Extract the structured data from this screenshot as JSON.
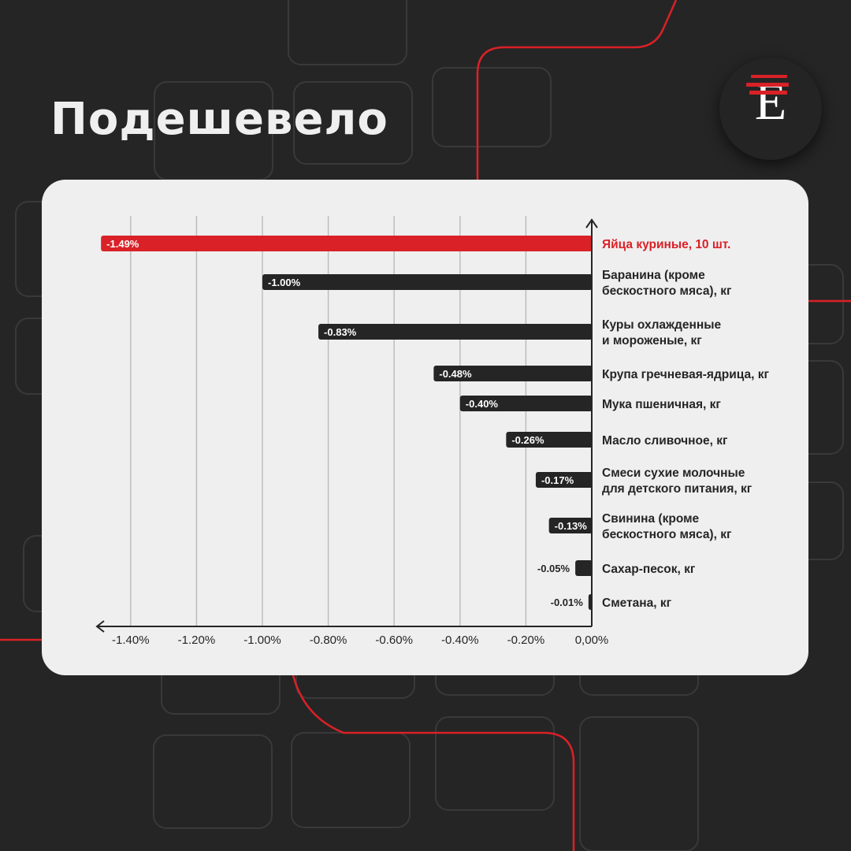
{
  "header": {
    "title": "Подешевело",
    "logo_letter": "E"
  },
  "colors": {
    "background": "#262525",
    "accent": "#d92127",
    "bar": "#262525",
    "card": "#efefef",
    "grid": "#bdbdbd"
  },
  "chart_data": {
    "type": "bar",
    "orientation": "horizontal",
    "title": "",
    "xlabel": "",
    "ylabel": "",
    "xlim": [
      -1.5,
      0
    ],
    "grid": true,
    "categories": [
      [
        "Яйца куриные, 10 шт."
      ],
      [
        "Баранина (кроме",
        "бескостного мяса), кг"
      ],
      [
        "Куры охлажденные",
        "и мороженые, кг"
      ],
      [
        "Крупа гречневая-ядрица, кг"
      ],
      [
        "Мука пшеничная, кг"
      ],
      [
        "Масло сливочное, кг"
      ],
      [
        "Смеси сухие молочные",
        "для детского питания, кг"
      ],
      [
        "Свинина (кроме",
        "бескостного мяса), кг"
      ],
      [
        "Сахар-песок, кг"
      ],
      [
        "Сметана, кг"
      ]
    ],
    "values": [
      -1.49,
      -1.0,
      -0.83,
      -0.48,
      -0.4,
      -0.26,
      -0.17,
      -0.13,
      -0.05,
      -0.01
    ],
    "value_labels": [
      "-1.49%",
      "-1.00%",
      "-0.83%",
      "-0.48%",
      "-0.40%",
      "-0.26%",
      "-0.17%",
      "-0.13%",
      "-0.05%",
      "-0.01%"
    ],
    "highlight_index": 0,
    "x_ticks": [
      -1.4,
      -1.2,
      -1.0,
      -0.8,
      -0.6,
      -0.4,
      -0.2,
      0
    ],
    "x_tick_labels": [
      "-1.40%",
      "-1.20%",
      "-1.00%",
      "-0.80%",
      "-0.60%",
      "-0.40%",
      "-0.20%",
      "0,00%"
    ]
  }
}
